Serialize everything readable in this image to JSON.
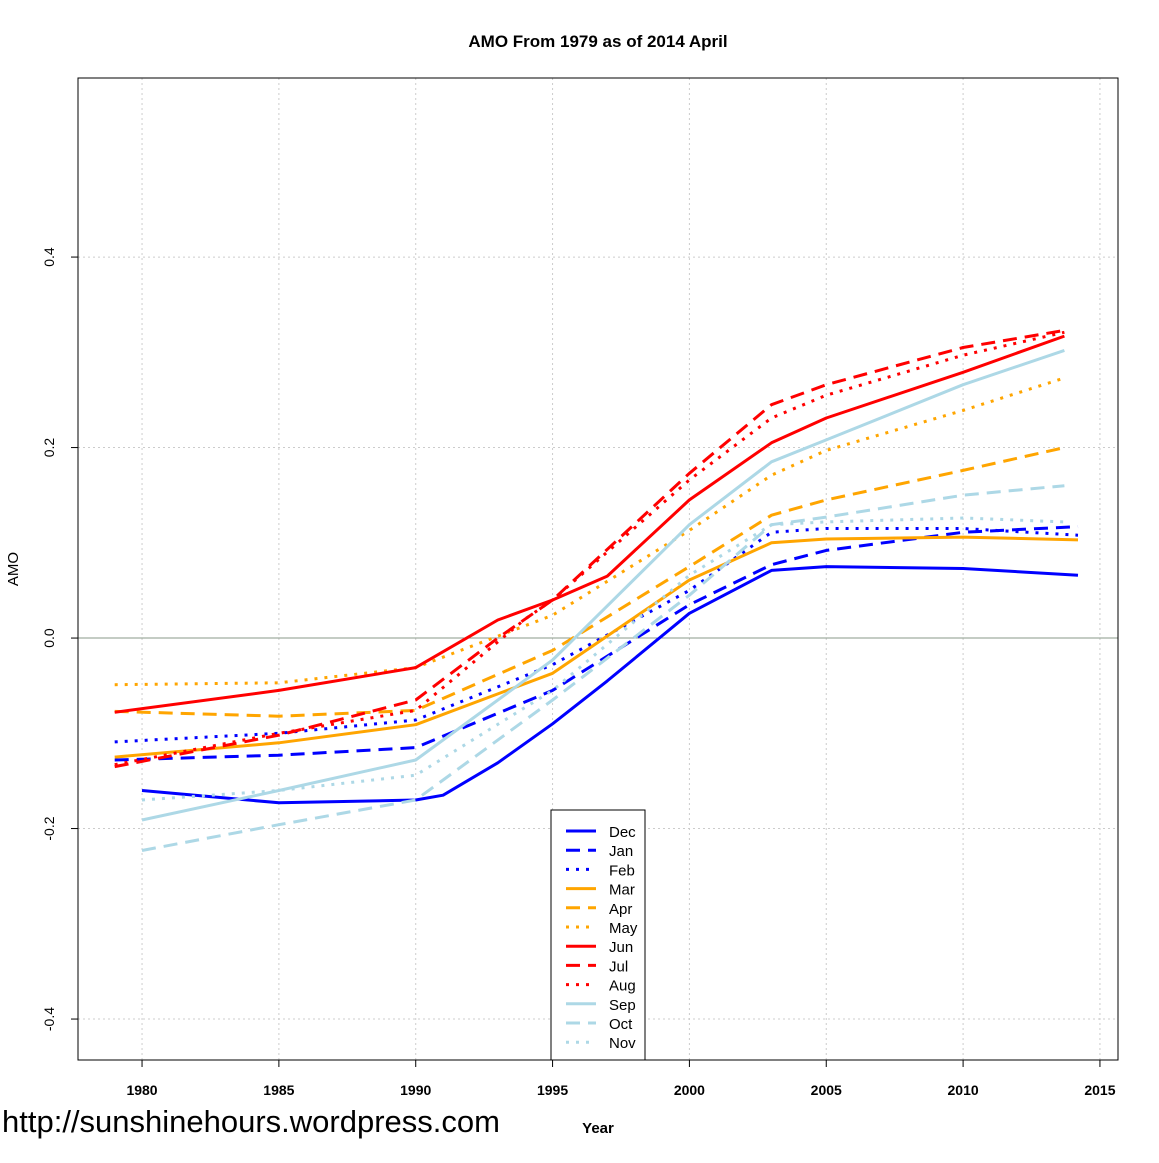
{
  "chart_data": {
    "type": "line",
    "title": "AMO From 1979 as of 2014 April",
    "xlabel": "Year",
    "ylabel": "AMO",
    "xlim": [
      1977.66,
      2015.66
    ],
    "ylim": [
      -0.443,
      0.588
    ],
    "xticks": [
      1980,
      1985,
      1990,
      1995,
      2000,
      2005,
      2010,
      2015
    ],
    "xtick_labels": [
      "1980",
      "1985",
      "1990",
      "1995",
      "2000",
      "2005",
      "2010",
      "2015"
    ],
    "yticks": [
      -0.4,
      -0.2,
      0.0,
      0.2,
      0.4
    ],
    "ytick_labels": [
      "-0.4",
      "-0.2",
      "0.0",
      "0.2",
      "0.4"
    ],
    "grid": true,
    "reference_line_y": 0,
    "legend_placement": "bottom-center",
    "series": [
      {
        "name": "Dec",
        "color": "#0000ff",
        "dash": "solid",
        "x": [
          1980,
          1985,
          1990,
          1991,
          1993,
          1995,
          1997,
          2000,
          2003,
          2005,
          2010,
          2014.2
        ],
        "y": [
          -0.16,
          -0.173,
          -0.17,
          -0.165,
          -0.131,
          -0.09,
          -0.045,
          0.026,
          0.071,
          0.075,
          0.073,
          0.066
        ]
      },
      {
        "name": "Jan",
        "color": "#0000ff",
        "dash": "dashed",
        "x": [
          1979,
          1985,
          1990,
          1995,
          2000,
          2003,
          2005,
          2010,
          2014.2
        ],
        "y": [
          -0.128,
          -0.123,
          -0.115,
          -0.055,
          0.035,
          0.077,
          0.092,
          0.111,
          0.117
        ]
      },
      {
        "name": "Feb",
        "color": "#0000ff",
        "dash": "dotted",
        "x": [
          1979,
          1985,
          1990,
          1995,
          2000,
          2003,
          2005,
          2010,
          2014.2
        ],
        "y": [
          -0.109,
          -0.1,
          -0.086,
          -0.028,
          0.05,
          0.111,
          0.115,
          0.115,
          0.108
        ]
      },
      {
        "name": "Mar",
        "color": "#ffa500",
        "dash": "solid",
        "x": [
          1979,
          1985,
          1990,
          1995,
          2000,
          2003,
          2005,
          2010,
          2014.2
        ],
        "y": [
          -0.125,
          -0.11,
          -0.091,
          -0.037,
          0.061,
          0.1,
          0.104,
          0.106,
          0.103
        ]
      },
      {
        "name": "Apr",
        "color": "#ffa500",
        "dash": "dashed",
        "x": [
          1979,
          1985,
          1990,
          1995,
          2000,
          2003,
          2005,
          2010,
          2013.7
        ],
        "y": [
          -0.077,
          -0.082,
          -0.076,
          -0.013,
          0.075,
          0.129,
          0.145,
          0.176,
          0.2
        ]
      },
      {
        "name": "May",
        "color": "#ffa500",
        "dash": "dotted",
        "x": [
          1979,
          1985,
          1990,
          1995,
          2000,
          2003,
          2005,
          2010,
          2013.7
        ],
        "y": [
          -0.049,
          -0.047,
          -0.031,
          0.024,
          0.113,
          0.171,
          0.197,
          0.239,
          0.273
        ]
      },
      {
        "name": "Jun",
        "color": "#ff0000",
        "dash": "solid",
        "x": [
          1979,
          1985,
          1990,
          1993,
          1995,
          1997,
          2000,
          2003,
          2005,
          2010,
          2013.7
        ],
        "y": [
          -0.078,
          -0.055,
          -0.031,
          0.019,
          0.04,
          0.065,
          0.145,
          0.205,
          0.231,
          0.279,
          0.317
        ]
      },
      {
        "name": "Jul",
        "color": "#ff0000",
        "dash": "dashed",
        "x": [
          1979,
          1985,
          1990,
          1993,
          1995,
          2000,
          2003,
          2005,
          2010,
          2013.7
        ],
        "y": [
          -0.135,
          -0.102,
          -0.065,
          0.0,
          0.04,
          0.173,
          0.245,
          0.266,
          0.305,
          0.323
        ]
      },
      {
        "name": "Aug",
        "color": "#ff0000",
        "dash": "dotted",
        "x": [
          1979,
          1985,
          1990,
          1994,
          1995,
          2000,
          2003,
          2005,
          2010,
          2013.7
        ],
        "y": [
          -0.133,
          -0.1,
          -0.076,
          0.02,
          0.04,
          0.166,
          0.231,
          0.255,
          0.297,
          0.321
        ]
      },
      {
        "name": "Sep",
        "color": "#add8e6",
        "dash": "solid",
        "x": [
          1980,
          1985,
          1990,
          1995,
          2000,
          2003,
          2005,
          2010,
          2013.7
        ],
        "y": [
          -0.191,
          -0.16,
          -0.128,
          -0.023,
          0.119,
          0.185,
          0.208,
          0.266,
          0.302
        ]
      },
      {
        "name": "Oct",
        "color": "#add8e6",
        "dash": "dashed",
        "x": [
          1980,
          1985,
          1990,
          1995,
          2000,
          2003,
          2005,
          2010,
          2013.7
        ],
        "y": [
          -0.223,
          -0.196,
          -0.17,
          -0.065,
          0.045,
          0.119,
          0.127,
          0.15,
          0.16
        ]
      },
      {
        "name": "Nov",
        "color": "#add8e6",
        "dash": "dotted",
        "x": [
          1980,
          1985,
          1990,
          1995,
          2000,
          2003,
          2005,
          2010,
          2013.7
        ],
        "y": [
          -0.17,
          -0.16,
          -0.144,
          -0.055,
          0.066,
          0.119,
          0.122,
          0.126,
          0.122
        ]
      }
    ]
  },
  "footer": {
    "url": "http://sunshinehours.wordpress.com"
  }
}
